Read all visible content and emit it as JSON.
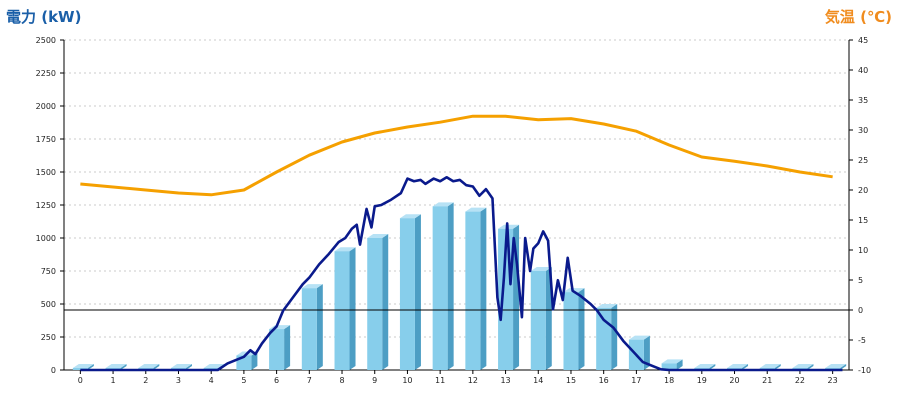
{
  "chart_data": {
    "type": "bar",
    "categories": [
      "0",
      "1",
      "2",
      "3",
      "4",
      "5",
      "6",
      "7",
      "8",
      "9",
      "10",
      "11",
      "12",
      "13",
      "14",
      "15",
      "16",
      "17",
      "18",
      "19",
      "20",
      "21",
      "22",
      "23"
    ],
    "y_left_title": "電力 (kW)",
    "y_right_title": "気温 (℃)",
    "y_left_ticks": [
      "0",
      "250",
      "500",
      "750",
      "1000",
      "1250",
      "1500",
      "1750",
      "2000",
      "2250",
      "2500"
    ],
    "y_right_ticks": [
      "-10",
      "-5",
      "0",
      "5",
      "10",
      "15",
      "20",
      "25",
      "30",
      "35",
      "40",
      "45"
    ],
    "ylim_left": [
      0,
      2500
    ],
    "ylim_right": [
      -10,
      45
    ],
    "grid": true,
    "colors": {
      "left_title": "#1a5fa8",
      "right_title": "#f08c1e",
      "bar_front": "#87ceeb",
      "bar_side": "#4d9ec4",
      "bar_top": "#b7e2f5",
      "realtime_line": "#0a1a8c",
      "temperature_line": "#f5a000",
      "grid": "#bbbbbb",
      "zero_line": "#000000"
    },
    "series": [
      {
        "kind": "bar",
        "axis": "left",
        "values": [
          15,
          15,
          15,
          15,
          15,
          110,
          310,
          620,
          900,
          1000,
          1150,
          1240,
          1200,
          1070,
          750,
          590,
          470,
          230,
          50,
          15,
          15,
          15,
          15,
          15
        ]
      },
      {
        "kind": "temperature",
        "axis": "right",
        "values": [
          21,
          20.5,
          20,
          19.5,
          19.2,
          20,
          23,
          25.8,
          28,
          29.5,
          30.5,
          31.3,
          32.3,
          32.3,
          31.7,
          31.9,
          31,
          29.8,
          27.5,
          25.5,
          24.8,
          24,
          23,
          22.2
        ]
      },
      {
        "kind": "realtime",
        "axis": "left",
        "points": [
          [
            0,
            0
          ],
          [
            4.2,
            0
          ],
          [
            4.5,
            50
          ],
          [
            4.8,
            80
          ],
          [
            5.0,
            100
          ],
          [
            5.2,
            150
          ],
          [
            5.35,
            120
          ],
          [
            5.55,
            200
          ],
          [
            5.8,
            280
          ],
          [
            6.0,
            330
          ],
          [
            6.2,
            450
          ],
          [
            6.5,
            550
          ],
          [
            6.8,
            650
          ],
          [
            7.0,
            700
          ],
          [
            7.3,
            800
          ],
          [
            7.6,
            880
          ],
          [
            7.9,
            970
          ],
          [
            8.1,
            1000
          ],
          [
            8.3,
            1070
          ],
          [
            8.45,
            1100
          ],
          [
            8.55,
            950
          ],
          [
            8.75,
            1220
          ],
          [
            8.9,
            1080
          ],
          [
            9.0,
            1240
          ],
          [
            9.2,
            1250
          ],
          [
            9.5,
            1290
          ],
          [
            9.8,
            1340
          ],
          [
            10.0,
            1450
          ],
          [
            10.2,
            1430
          ],
          [
            10.4,
            1440
          ],
          [
            10.55,
            1410
          ],
          [
            10.8,
            1450
          ],
          [
            11.0,
            1430
          ],
          [
            11.2,
            1460
          ],
          [
            11.4,
            1430
          ],
          [
            11.6,
            1440
          ],
          [
            11.8,
            1400
          ],
          [
            12.0,
            1390
          ],
          [
            12.2,
            1320
          ],
          [
            12.4,
            1370
          ],
          [
            12.6,
            1300
          ],
          [
            12.75,
            550
          ],
          [
            12.85,
            380
          ],
          [
            12.95,
            700
          ],
          [
            13.05,
            1110
          ],
          [
            13.15,
            650
          ],
          [
            13.25,
            1000
          ],
          [
            13.35,
            800
          ],
          [
            13.5,
            400
          ],
          [
            13.6,
            1000
          ],
          [
            13.75,
            750
          ],
          [
            13.85,
            920
          ],
          [
            14.0,
            960
          ],
          [
            14.15,
            1050
          ],
          [
            14.3,
            980
          ],
          [
            14.45,
            460
          ],
          [
            14.6,
            680
          ],
          [
            14.75,
            530
          ],
          [
            14.9,
            850
          ],
          [
            15.05,
            600
          ],
          [
            15.3,
            560
          ],
          [
            15.6,
            500
          ],
          [
            15.8,
            450
          ],
          [
            16.0,
            380
          ],
          [
            16.3,
            320
          ],
          [
            16.6,
            220
          ],
          [
            16.9,
            140
          ],
          [
            17.2,
            60
          ],
          [
            17.5,
            30
          ],
          [
            17.75,
            5
          ],
          [
            18.0,
            0
          ],
          [
            23.3,
            0
          ]
        ]
      }
    ]
  }
}
